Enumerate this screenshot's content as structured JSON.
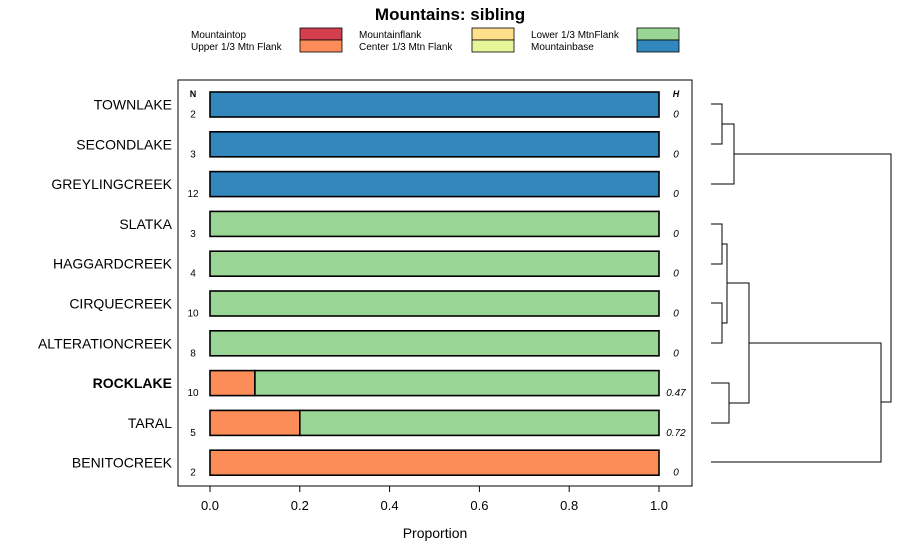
{
  "chart_data": {
    "type": "bar",
    "orientation": "horizontal",
    "stacked": true,
    "title": "Mountains: sibling",
    "xlabel": "Proportion",
    "xlim": [
      0,
      1
    ],
    "xticks": [
      "0.0",
      "0.2",
      "0.4",
      "0.6",
      "0.8",
      "1.0"
    ],
    "n_header": "N",
    "h_header": "H",
    "legend": [
      {
        "name": "Mountaintop",
        "color": "#d53e4f"
      },
      {
        "name": "Upper 1/3 Mtn Flank",
        "color": "#fc8d59"
      },
      {
        "name": "Mountainflank",
        "color": "#fee08b"
      },
      {
        "name": "Center 1/3 Mtn Flank",
        "color": "#e6f598"
      },
      {
        "name": "Lower 1/3 MtnFlank",
        "color": "#99d594"
      },
      {
        "name": "Mountainbase",
        "color": "#3288bd"
      }
    ],
    "categories": [
      "TOWNLAKE",
      "SECONDLAKE",
      "GREYLINGCREEK",
      "SLATKA",
      "HAGGARDCREEK",
      "CIRQUECREEK",
      "ALTERATIONCREEK",
      "ROCKLAKE",
      "TARAL",
      "BENITOCREEK"
    ],
    "bold_categories": [
      "ROCKLAKE"
    ],
    "n": [
      "2",
      "3",
      "12",
      "3",
      "4",
      "10",
      "8",
      "10",
      "5",
      "2"
    ],
    "h": [
      "0",
      "0",
      "0",
      "0",
      "0",
      "0",
      "0",
      "0.47",
      "0.72",
      "0"
    ],
    "series": [
      {
        "name": "Mountaintop",
        "values": [
          0,
          0,
          0,
          0,
          0,
          0,
          0,
          0,
          0,
          0
        ]
      },
      {
        "name": "Upper 1/3 Mtn Flank",
        "values": [
          0,
          0,
          0,
          0,
          0,
          0,
          0,
          0.1,
          0.2,
          1.0
        ]
      },
      {
        "name": "Mountainflank",
        "values": [
          0,
          0,
          0,
          0,
          0,
          0,
          0,
          0,
          0,
          0
        ]
      },
      {
        "name": "Center 1/3 Mtn Flank",
        "values": [
          0,
          0,
          0,
          0,
          0,
          0,
          0,
          0,
          0,
          0
        ]
      },
      {
        "name": "Lower 1/3 MtnFlank",
        "values": [
          0,
          0,
          0,
          1.0,
          1.0,
          1.0,
          1.0,
          0.9,
          0.8,
          0
        ]
      },
      {
        "name": "Mountainbase",
        "values": [
          1.0,
          1.0,
          1.0,
          0,
          0,
          0,
          0,
          0,
          0,
          0
        ]
      }
    ],
    "dendrogram": {
      "merges": [
        [
          "TOWNLAKE",
          "SECONDLAKE",
          0.05
        ],
        [
          "SLATKA",
          "HAGGARDCREEK",
          0.03
        ],
        [
          "CIRQUECREEK",
          "ALTERATIONCREEK",
          0.03
        ],
        [
          "cluster:SLATKA+HAGGARDCREEK",
          "cluster:CIRQUECREEK+ALTERATIONCREEK",
          0.05
        ],
        [
          "ROCKLAKE",
          "TARAL",
          0.1
        ],
        [
          "cluster:SLATKA..ALTERATIONCREEK",
          "cluster:ROCKLAKE+TARAL",
          0.2
        ],
        [
          "cluster:TOWNLAKE+SECONDLAKE",
          "GREYLINGCREEK",
          0.12
        ],
        [
          "cluster:SLATKA..TARAL",
          "BENITOCREEK",
          1.0
        ],
        [
          "cluster:TOWNLAKE..GREYLINGCREEK",
          "cluster:SLATKA..BENITOCREEK",
          1.0
        ]
      ]
    }
  }
}
